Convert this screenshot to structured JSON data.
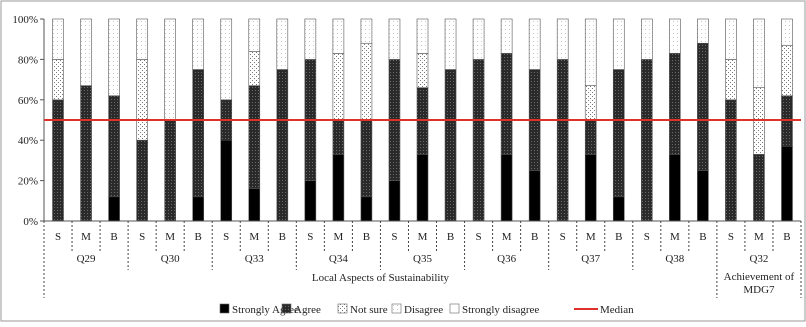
{
  "chart_data": {
    "type": "bar",
    "stacked": true,
    "ylim": [
      0,
      100
    ],
    "yticks": [
      "0%",
      "20%",
      "40%",
      "60%",
      "80%",
      "100%"
    ],
    "median": 50,
    "groups": [
      {
        "label": "Q29",
        "categories": [
          "S",
          "M",
          "B"
        ]
      },
      {
        "label": "Q30",
        "categories": [
          "S",
          "M",
          "B"
        ]
      },
      {
        "label": "Q33",
        "categories": [
          "S",
          "M",
          "B"
        ]
      },
      {
        "label": "Q34",
        "categories": [
          "S",
          "M",
          "B"
        ]
      },
      {
        "label": "Q35",
        "categories": [
          "S",
          "M",
          "B"
        ]
      },
      {
        "label": "Q36",
        "categories": [
          "S",
          "M",
          "B"
        ]
      },
      {
        "label": "Q37",
        "categories": [
          "S",
          "M",
          "B"
        ]
      },
      {
        "label": "Q38",
        "categories": [
          "S",
          "M",
          "B"
        ]
      },
      {
        "label": "Q32",
        "categories": [
          "S",
          "M",
          "B"
        ]
      }
    ],
    "supergroups": [
      {
        "label": "Local Aspects of Sustainability",
        "span": [
          0,
          7
        ]
      },
      {
        "label": "Achievement of MDG7",
        "span": [
          8,
          8
        ]
      }
    ],
    "series": [
      {
        "name": "Strongly Agree",
        "color": "#000000",
        "values": [
          0,
          0,
          12,
          0,
          0,
          12,
          40,
          16,
          0,
          20,
          33,
          12,
          20,
          33,
          0,
          0,
          33,
          25,
          0,
          33,
          12,
          0,
          33,
          25,
          0,
          0,
          37
        ]
      },
      {
        "name": "Agree",
        "color": "#333333",
        "values": [
          60,
          67,
          50,
          40,
          50,
          63,
          20,
          51,
          75,
          60,
          17,
          38,
          60,
          33,
          75,
          80,
          50,
          50,
          80,
          17,
          63,
          80,
          50,
          63,
          60,
          33,
          25
        ]
      },
      {
        "name": "Not sure",
        "color": "#bbbbbb",
        "values": [
          20,
          0,
          0,
          40,
          0,
          0,
          0,
          17,
          0,
          0,
          33,
          38,
          0,
          17,
          0,
          0,
          0,
          0,
          0,
          17,
          0,
          0,
          0,
          0,
          20,
          33,
          25
        ]
      },
      {
        "name": "Disagree",
        "color": "#f2f2f2",
        "values": [
          20,
          33,
          38,
          20,
          50,
          25,
          40,
          16,
          25,
          20,
          17,
          12,
          20,
          17,
          25,
          20,
          17,
          25,
          20,
          33,
          25,
          20,
          17,
          12,
          20,
          34,
          13
        ]
      },
      {
        "name": "Strongly disagree",
        "color": "#ffffff",
        "values": [
          0,
          0,
          0,
          0,
          0,
          0,
          0,
          0,
          0,
          0,
          0,
          0,
          0,
          0,
          0,
          0,
          0,
          0,
          0,
          0,
          0,
          0,
          0,
          0,
          0,
          0,
          0
        ]
      }
    ],
    "legend": {
      "position": "bottom",
      "entries": [
        "Strongly Agree",
        "Agree",
        "Not sure",
        "Disagree",
        "Strongly disagree",
        "Median"
      ]
    },
    "median_line": {
      "name": "Median",
      "color": "#e0302a"
    },
    "grid": false
  }
}
